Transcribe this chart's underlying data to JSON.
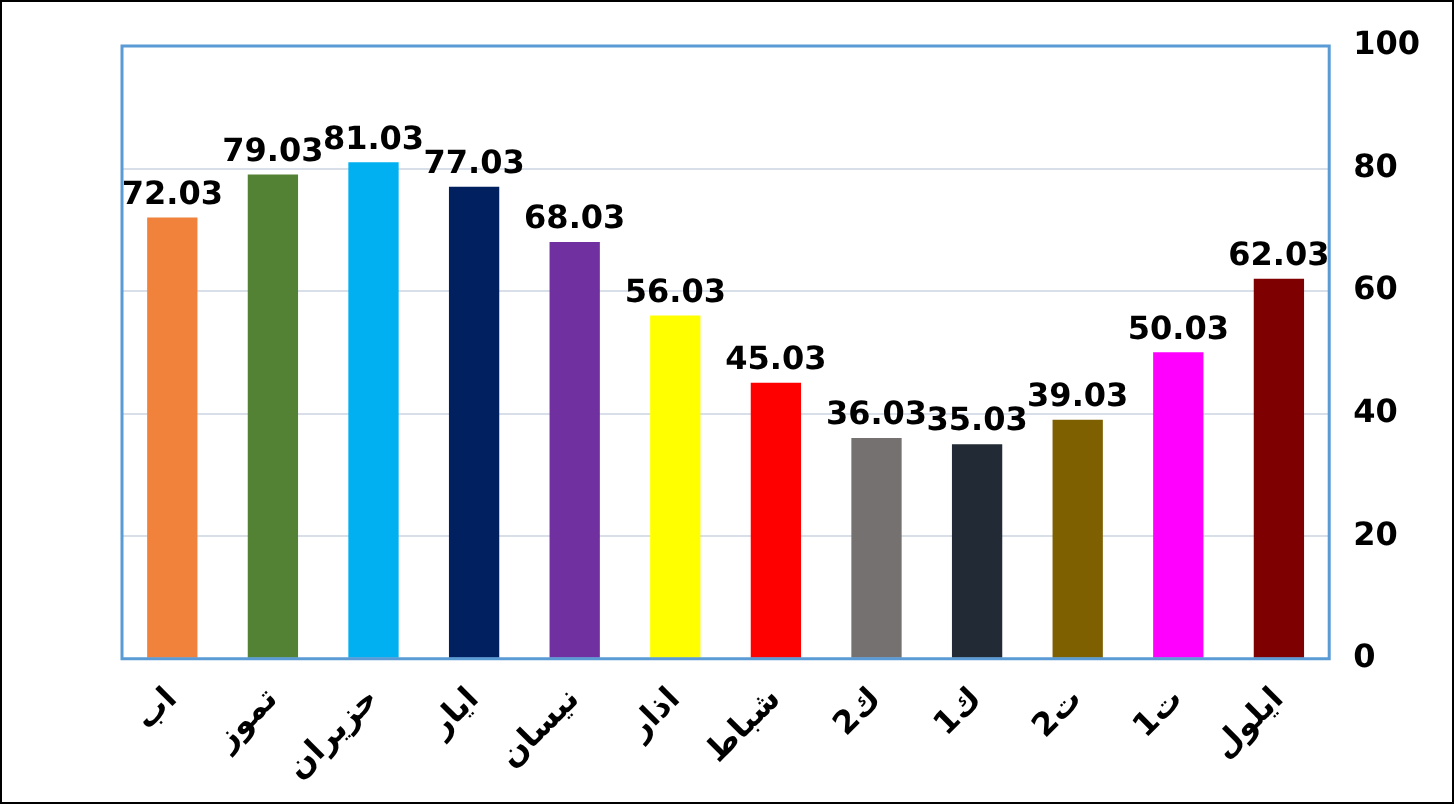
{
  "chart_data": {
    "type": "bar",
    "categories": [
      "اب",
      "تموز",
      "حزيران",
      "ايار",
      "نيسان",
      "اذار",
      "شباط",
      "ك2",
      "ك1",
      "ت2",
      "ت1",
      "ايلول"
    ],
    "values": [
      72.03,
      79.03,
      81.03,
      77.03,
      68.03,
      56.03,
      45.03,
      36.03,
      35.03,
      39.03,
      50.03,
      62.03
    ],
    "colors": [
      "#f0823c",
      "#548235",
      "#00b0f0",
      "#002060",
      "#7030a0",
      "#ffff00",
      "#ff0000",
      "#767171",
      "#222a35",
      "#7f6000",
      "#ff00ff",
      "#7f0000"
    ],
    "ylim": [
      0,
      100
    ],
    "yticks": [
      0,
      20,
      40,
      60,
      80,
      100
    ],
    "grid": "y",
    "data_labels": true,
    "legend": false
  }
}
